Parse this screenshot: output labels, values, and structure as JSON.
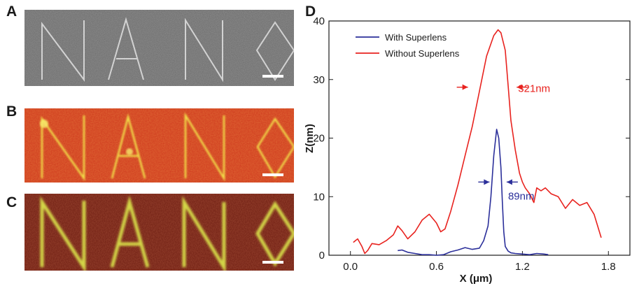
{
  "panels": {
    "a": {
      "letter": "A"
    },
    "b": {
      "letter": "B"
    },
    "c": {
      "letter": "C"
    },
    "d": {
      "letter": "D"
    }
  },
  "colors": {
    "with_superlens": "#2b2f9a",
    "without_superlens": "#e8231f",
    "sem_background": "#6b6b6b",
    "fluor_b_background": "#cf3a1e",
    "fluor_c_background": "#6e1d12",
    "fluor_lines": "#f2e24a"
  },
  "chart_data": {
    "type": "line",
    "xlabel": "X (μm)",
    "ylabel": "Z(nm)",
    "xlim": [
      -0.15,
      1.95
    ],
    "ylim": [
      0,
      40
    ],
    "xticks": [
      0.0,
      0.6,
      1.2,
      1.8
    ],
    "xtick_labels": [
      "0.0",
      "0.6",
      "1.2",
      "1.8"
    ],
    "yticks": [
      0,
      10,
      20,
      30,
      40
    ],
    "ytick_labels": [
      "0",
      "10",
      "20",
      "30",
      "40"
    ],
    "legend_position": "top-left",
    "grid": false,
    "series": [
      {
        "name": "With Superlens",
        "color": "#2b2f9a",
        "x": [
          0.33,
          0.36,
          0.4,
          0.45,
          0.5,
          0.55,
          0.6,
          0.65,
          0.7,
          0.75,
          0.8,
          0.85,
          0.9,
          0.93,
          0.96,
          0.98,
          1.0,
          1.02,
          1.035,
          1.05,
          1.06,
          1.07,
          1.08,
          1.1,
          1.12,
          1.15,
          1.2,
          1.25,
          1.3,
          1.35,
          1.38
        ],
        "y": [
          0.8,
          0.9,
          0.5,
          0.3,
          0.1,
          0.1,
          0.0,
          0.1,
          0.6,
          0.9,
          1.3,
          1.0,
          1.2,
          2.5,
          5.0,
          10.0,
          17.0,
          21.5,
          20.0,
          15.0,
          9.0,
          4.0,
          1.5,
          0.7,
          0.4,
          0.3,
          0.2,
          0.1,
          0.3,
          0.2,
          0.1
        ]
      },
      {
        "name": "Without Superlens",
        "color": "#e8231f",
        "x": [
          0.02,
          0.05,
          0.08,
          0.1,
          0.12,
          0.15,
          0.2,
          0.25,
          0.3,
          0.33,
          0.36,
          0.4,
          0.45,
          0.5,
          0.55,
          0.6,
          0.63,
          0.66,
          0.7,
          0.75,
          0.8,
          0.85,
          0.9,
          0.95,
          1.0,
          1.03,
          1.05,
          1.08,
          1.1,
          1.12,
          1.15,
          1.18,
          1.2,
          1.22,
          1.25,
          1.28,
          1.3,
          1.33,
          1.36,
          1.4,
          1.45,
          1.5,
          1.55,
          1.6,
          1.65,
          1.7,
          1.75
        ],
        "y": [
          2.2,
          2.8,
          1.5,
          0.3,
          0.8,
          2.0,
          1.8,
          2.5,
          3.5,
          5.0,
          4.2,
          2.8,
          4.0,
          6.0,
          7.0,
          5.5,
          4.0,
          4.5,
          7.5,
          12.0,
          17.0,
          22.0,
          28.0,
          34.0,
          37.5,
          38.5,
          38.0,
          35.0,
          29.0,
          23.0,
          18.0,
          14.0,
          12.5,
          11.5,
          10.5,
          9.0,
          11.5,
          11.0,
          11.5,
          10.5,
          10.0,
          8.0,
          9.5,
          8.5,
          9.0,
          7.0,
          3.0
        ]
      }
    ],
    "annotations": [
      {
        "text": "321nm",
        "color": "#e8231f",
        "x": 1.17,
        "y": 28.5,
        "arrow_from": 0.82,
        "arrow_to": 1.16,
        "arrow_y": 28.7
      },
      {
        "text": "89nm",
        "color": "#2b2f9a",
        "x": 1.1,
        "y": 10.1,
        "arrow_from": 0.97,
        "arrow_to": 1.09,
        "arrow_y": 12.5
      }
    ]
  }
}
